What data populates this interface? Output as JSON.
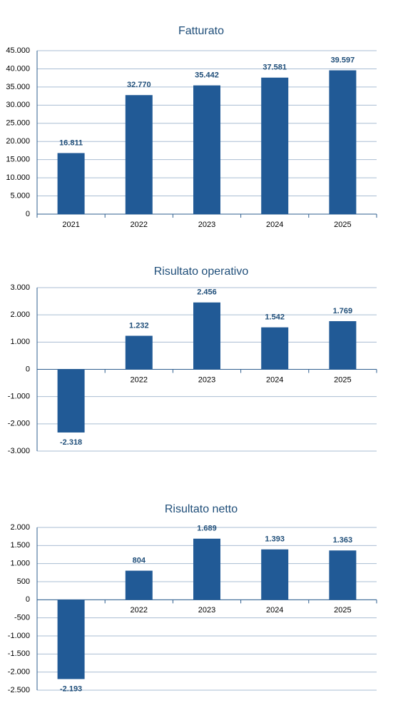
{
  "chart_data": [
    {
      "type": "bar",
      "title": "Fatturato",
      "color": "#215a96",
      "grid": true,
      "categories": [
        "2021",
        "2022",
        "2023",
        "2024",
        "2025"
      ],
      "values": [
        16811,
        32770,
        35442,
        37581,
        39597
      ],
      "value_labels": [
        "16.811",
        "32.770",
        "35.442",
        "37.581",
        "39.597"
      ],
      "ylim": [
        0,
        45000
      ],
      "yticks": [
        0,
        {
          "value": 5000,
          "label": "5.000"
        },
        {
          "value": 10000,
          "label": "10.000"
        },
        {
          "value": 15000,
          "label": "15.000"
        },
        {
          "value": 20000,
          "label": "20.000"
        },
        {
          "value": 25000,
          "label": "25.000"
        },
        {
          "value": 30000,
          "label": "30.000"
        },
        {
          "value": 35000,
          "label": "35.000"
        },
        {
          "value": 40000,
          "label": "40.000"
        },
        {
          "value": 45000,
          "label": "45.000"
        }
      ]
    },
    {
      "type": "bar",
      "title": "Risultato operativo",
      "color": "#215a96",
      "grid": true,
      "categories": [
        null,
        "2022",
        "2023",
        "2024",
        "2025"
      ],
      "values": [
        -2318,
        1232,
        2456,
        1542,
        1769
      ],
      "value_labels": [
        "-2.318",
        "1.232",
        "2.456",
        "1.542",
        "1.769"
      ],
      "ylim": [
        -3000,
        3000
      ],
      "yticks": [
        {
          "value": -3000,
          "label": "-3.000"
        },
        {
          "value": -2000,
          "label": "-2.000"
        },
        {
          "value": -1000,
          "label": "-1.000"
        },
        0,
        {
          "value": 1000,
          "label": "1.000"
        },
        {
          "value": 2000,
          "label": "2.000"
        },
        {
          "value": 3000,
          "label": "3.000"
        }
      ]
    },
    {
      "type": "bar",
      "title": "Risultato netto",
      "color": "#215a96",
      "grid": true,
      "categories": [
        null,
        "2022",
        "2023",
        "2024",
        "2025"
      ],
      "values": [
        -2193,
        804,
        1689,
        1393,
        1363
      ],
      "value_labels": [
        "-2.193",
        "804",
        "1.689",
        "1.393",
        "1.363"
      ],
      "ylim": [
        -2500,
        2000
      ],
      "yticks": [
        {
          "value": -2500,
          "label": "-2.500"
        },
        {
          "value": -2000,
          "label": "-2.000"
        },
        {
          "value": -1500,
          "label": "-1.500"
        },
        {
          "value": -1000,
          "label": "-1.000"
        },
        -500,
        0,
        500,
        {
          "value": 1000,
          "label": "1.000"
        },
        {
          "value": 1500,
          "label": "1.500"
        },
        {
          "value": 2000,
          "label": "2.000"
        }
      ]
    }
  ]
}
